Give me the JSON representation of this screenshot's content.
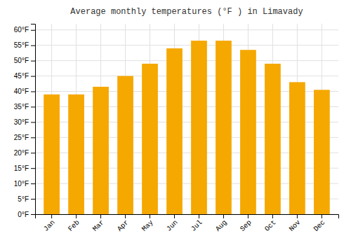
{
  "chart_data": {
    "type": "bar",
    "title": "Average monthly temperatures (°F ) in Limavady",
    "categories": [
      "Jan",
      "Feb",
      "Mar",
      "Apr",
      "May",
      "Jun",
      "Jul",
      "Aug",
      "Sep",
      "Oct",
      "Nov",
      "Dec"
    ],
    "values": [
      39,
      39,
      41.5,
      45,
      49,
      54,
      56.5,
      56.5,
      53.5,
      49,
      43,
      40.5
    ],
    "color": "#F5A800",
    "ylim": [
      0,
      62
    ],
    "yticks": [
      {
        "value": 0,
        "label": "0°F"
      },
      {
        "value": 5,
        "label": "5°F"
      },
      {
        "value": 10,
        "label": "10°F"
      },
      {
        "value": 15,
        "label": "15°F"
      },
      {
        "value": 20,
        "label": "20°F"
      },
      {
        "value": 25,
        "label": "25°F"
      },
      {
        "value": 30,
        "label": "30°F"
      },
      {
        "value": 35,
        "label": "35°F"
      },
      {
        "value": 40,
        "label": "40°F"
      },
      {
        "value": 45,
        "label": "45°F"
      },
      {
        "value": 50,
        "label": "50°F"
      },
      {
        "value": 55,
        "label": "55°F"
      },
      {
        "value": 60,
        "label": "60°F"
      }
    ],
    "grid": true
  }
}
